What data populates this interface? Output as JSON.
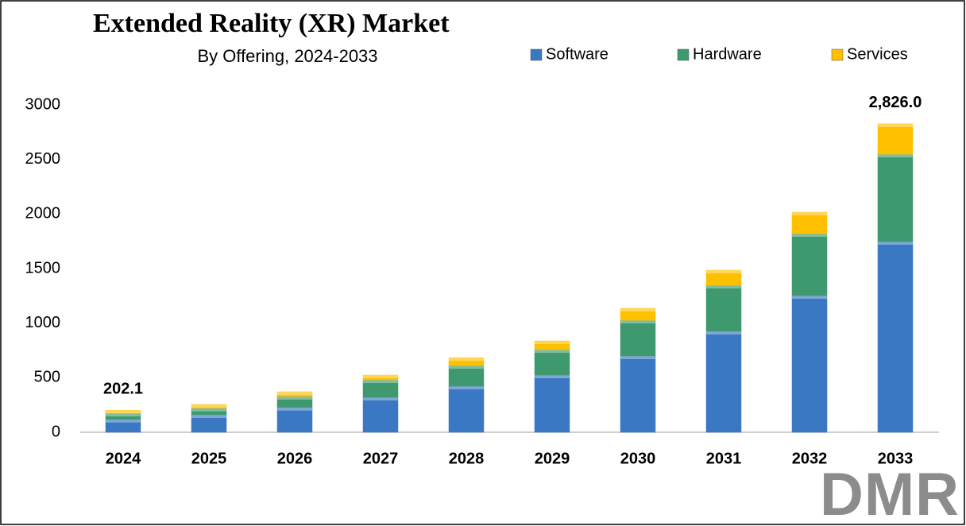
{
  "chart_data": {
    "type": "stacked_bar",
    "title": "Extended Reality (XR) Market",
    "subtitle": "By Offering, 2024-2033",
    "categories": [
      "2024",
      "2025",
      "2026",
      "2027",
      "2028",
      "2029",
      "2030",
      "2031",
      "2032",
      "2033"
    ],
    "series": [
      {
        "name": "Software",
        "color": "#3a78c3",
        "values": [
          118,
          160,
          228,
          320,
          422,
          524,
          699,
          925,
          1252,
          1747
        ]
      },
      {
        "name": "Hardware",
        "color": "#3e9a6e",
        "values": [
          56,
          60,
          100,
          160,
          189,
          233,
          327,
          422,
          568,
          801
        ]
      },
      {
        "name": "Services",
        "color": "#ffc000",
        "values": [
          28,
          35,
          43,
          44,
          73,
          80,
          110,
          138,
          197,
          278
        ]
      }
    ],
    "annotations": [
      {
        "category_index": 0,
        "value": 202.1,
        "label": "202.1"
      },
      {
        "category_index": 9,
        "value": 2826,
        "label": "2,826.0"
      }
    ],
    "ylim": [
      0,
      3000
    ],
    "yticks": [
      0,
      500,
      1000,
      1500,
      2000,
      2500,
      3000
    ],
    "grid": false
  },
  "logo": "DMR"
}
